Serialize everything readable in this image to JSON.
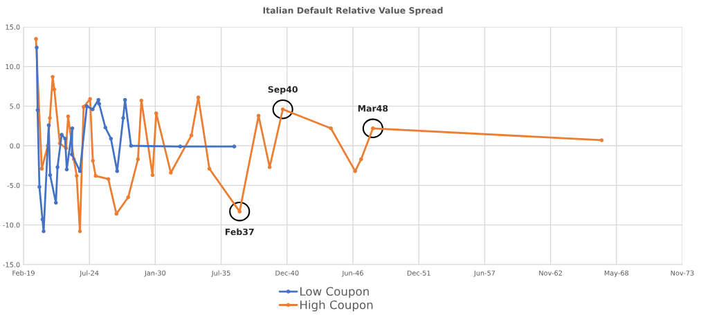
{
  "chart_data": {
    "type": "line",
    "title": "Italian Default Relative Value Spread",
    "xlim": [
      "2019-02-01",
      "2073-11-08"
    ],
    "xticks": [
      {
        "value": "2019-02-01",
        "label": "Feb-19"
      },
      {
        "value": "2024-07-24",
        "label": "Jul-24"
      },
      {
        "value": "2030-01-14",
        "label": "Jan-30"
      },
      {
        "value": "2035-07-08",
        "label": "Jul-35"
      },
      {
        "value": "2040-12-29",
        "label": "Dec-40"
      },
      {
        "value": "2046-06-21",
        "label": "Jun-46"
      },
      {
        "value": "2051-12-13",
        "label": "Dec-51"
      },
      {
        "value": "2057-06-05",
        "label": "Jun-57"
      },
      {
        "value": "2062-11-26",
        "label": "Nov-62"
      },
      {
        "value": "2068-05-18",
        "label": "May-68"
      },
      {
        "value": "2073-11-08",
        "label": "Nov-73"
      }
    ],
    "ylim": [
      -15,
      15
    ],
    "yticks": [
      {
        "value": -15,
        "label": "-15.0"
      },
      {
        "value": -10,
        "label": "-10.0"
      },
      {
        "value": -5,
        "label": "-5.0"
      },
      {
        "value": 0,
        "label": "0.0"
      },
      {
        "value": 5,
        "label": "5.0"
      },
      {
        "value": 10,
        "label": "10.0"
      },
      {
        "value": 15,
        "label": "15.0"
      }
    ],
    "grid": true,
    "legend": "bottom",
    "marker": "circle",
    "line_style": "solid",
    "series": [
      {
        "name": "Low Coupon",
        "color": "#4472c4",
        "x": [
          "2020-03-07",
          "2020-04-03",
          "2020-05-29",
          "2020-08-29",
          "2020-10-03",
          "2021-03-07",
          "2021-04-18",
          "2021-10-11",
          "2021-11-29",
          "2022-04-04",
          "2022-07-19",
          "2022-09-06",
          "2023-02-21",
          "2023-02-07",
          "2023-10-11",
          "2024-05-08",
          "2024-10-31",
          "2025-04-24",
          "2025-05-16",
          "2025-11-21",
          "2026-05-09",
          "2026-11-14",
          "2027-05-16",
          "2027-07-11",
          "2028-01-09",
          "2032-02-10",
          "2036-08-09"
        ],
        "values": [
          12.4,
          4.5,
          -5.2,
          -9.3,
          -10.8,
          2.6,
          -3.7,
          -7.2,
          -2.7,
          1.4,
          0.9,
          -3.0,
          2.2,
          -1.1,
          -3.2,
          5.0,
          4.6,
          5.8,
          5.3,
          2.3,
          0.9,
          -3.2,
          3.5,
          5.8,
          0.0,
          -0.1,
          -0.1
        ]
      },
      {
        "name": "High Coupon",
        "color": "#ed7d31",
        "x": [
          "2020-02-14",
          "2020-08-08",
          "2021-02-06",
          "2021-04-11",
          "2021-07-05",
          "2021-08-23",
          "2022-02-07",
          "2022-08-16",
          "2022-10-17",
          "2023-04-10",
          "2023-07-04",
          "2023-10-10",
          "2024-01-30",
          "2024-08-14",
          "2024-11-06",
          "2025-01-29",
          "2026-02-18",
          "2026-10-22",
          "2027-10-15",
          "2028-08-07",
          "2028-11-19",
          "2029-10-23",
          "2030-02-12",
          "2031-05-01",
          "2033-01-15",
          "2033-08-13",
          "2034-07-16",
          "2037-01-18",
          "2038-08-17",
          "2039-07-20",
          "2040-08-22",
          "2044-08-21",
          "2046-08-28",
          "2047-02-26",
          "2048-02-18",
          "2067-02-25"
        ],
        "values": [
          13.5,
          -2.9,
          0.0,
          3.5,
          8.7,
          7.1,
          0.3,
          -0.3,
          3.7,
          -1.7,
          -3.8,
          -10.8,
          4.9,
          5.9,
          -1.9,
          -3.8,
          -4.2,
          -8.6,
          -6.5,
          -1.7,
          5.7,
          -3.7,
          4.1,
          -3.4,
          1.3,
          6.1,
          -2.9,
          -8.3,
          3.8,
          -2.7,
          4.6,
          2.2,
          -3.2,
          -1.7,
          2.2,
          0.7
        ]
      }
    ],
    "annotations": [
      {
        "text": "Feb37",
        "x": "2037-01-18",
        "y": -8.3
      },
      {
        "text": "Sep40",
        "x": "2040-08-22",
        "y": 4.6
      },
      {
        "text": "Mar48",
        "x": "2048-02-18",
        "y": 2.2
      }
    ]
  }
}
